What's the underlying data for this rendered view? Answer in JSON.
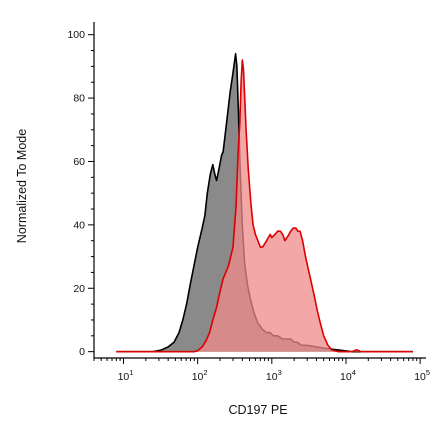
{
  "chart_data": {
    "type": "area",
    "xlabel": "CD197 PE",
    "ylabel": "Normalized To Mode",
    "x_scale": "log",
    "xlim": [
      4,
      120000
    ],
    "ylim": [
      -2,
      104
    ],
    "x_ticks": [
      {
        "value": 10,
        "base": "10",
        "exp": "1"
      },
      {
        "value": 100,
        "base": "10",
        "exp": "2"
      },
      {
        "value": 1000,
        "base": "10",
        "exp": "3"
      },
      {
        "value": 10000,
        "base": "10",
        "exp": "4"
      },
      {
        "value": 100000,
        "base": "10",
        "exp": "5"
      }
    ],
    "y_ticks": [
      0,
      20,
      40,
      60,
      80,
      100
    ],
    "series": [
      {
        "color": "#7f7f7f",
        "fill": "#8a8a8a",
        "stroke": "#000000",
        "points": [
          [
            8,
            0
          ],
          [
            16,
            0
          ],
          [
            25,
            0
          ],
          [
            32,
            0.5
          ],
          [
            40,
            1.5
          ],
          [
            48,
            3
          ],
          [
            56,
            6
          ],
          [
            63,
            10
          ],
          [
            71,
            15
          ],
          [
            79,
            21
          ],
          [
            89,
            27
          ],
          [
            100,
            33
          ],
          [
            115,
            39
          ],
          [
            125,
            43
          ],
          [
            135,
            50
          ],
          [
            148,
            56
          ],
          [
            160,
            59
          ],
          [
            170,
            56
          ],
          [
            180,
            54
          ],
          [
            195,
            58
          ],
          [
            210,
            62
          ],
          [
            220,
            63
          ],
          [
            245,
            72
          ],
          [
            275,
            82
          ],
          [
            300,
            88
          ],
          [
            325,
            94
          ],
          [
            338,
            90
          ],
          [
            355,
            75
          ],
          [
            375,
            57
          ],
          [
            400,
            40
          ],
          [
            430,
            28
          ],
          [
            470,
            21
          ],
          [
            520,
            16
          ],
          [
            580,
            12
          ],
          [
            650,
            9
          ],
          [
            750,
            7
          ],
          [
            850,
            6
          ],
          [
            950,
            6
          ],
          [
            1050,
            5
          ],
          [
            1200,
            5
          ],
          [
            1400,
            4
          ],
          [
            1600,
            4
          ],
          [
            1800,
            4
          ],
          [
            2000,
            3
          ],
          [
            2200,
            3
          ],
          [
            2500,
            2
          ],
          [
            3000,
            2
          ],
          [
            4000,
            1.5
          ],
          [
            5500,
            1
          ],
          [
            8000,
            0.5
          ],
          [
            12000,
            0
          ],
          [
            30000,
            0
          ],
          [
            80000,
            0
          ]
        ]
      },
      {
        "color": "#ff0000",
        "fill": "#f08a8a",
        "stroke": "#dd0000",
        "points": [
          [
            8,
            0
          ],
          [
            60,
            0
          ],
          [
            90,
            0
          ],
          [
            100,
            0.3
          ],
          [
            115,
            1.5
          ],
          [
            130,
            3.5
          ],
          [
            145,
            6
          ],
          [
            160,
            10
          ],
          [
            180,
            14
          ],
          [
            200,
            19
          ],
          [
            220,
            23
          ],
          [
            260,
            27
          ],
          [
            300,
            33
          ],
          [
            330,
            46
          ],
          [
            350,
            62
          ],
          [
            370,
            72
          ],
          [
            385,
            85
          ],
          [
            400,
            92
          ],
          [
            415,
            89
          ],
          [
            430,
            81
          ],
          [
            450,
            70
          ],
          [
            480,
            58
          ],
          [
            520,
            47
          ],
          [
            560,
            40
          ],
          [
            600,
            37
          ],
          [
            650,
            35
          ],
          [
            700,
            33
          ],
          [
            750,
            33
          ],
          [
            800,
            34
          ],
          [
            850,
            35
          ],
          [
            900,
            36
          ],
          [
            950,
            37
          ],
          [
            1000,
            36
          ],
          [
            1100,
            37
          ],
          [
            1200,
            38
          ],
          [
            1300,
            38
          ],
          [
            1400,
            37
          ],
          [
            1500,
            35
          ],
          [
            1600,
            36
          ],
          [
            1700,
            37
          ],
          [
            1800,
            38
          ],
          [
            1950,
            39
          ],
          [
            2100,
            39
          ],
          [
            2250,
            38
          ],
          [
            2400,
            38
          ],
          [
            2600,
            35
          ],
          [
            2850,
            30
          ],
          [
            3100,
            26
          ],
          [
            3400,
            22
          ],
          [
            3700,
            18
          ],
          [
            4100,
            13
          ],
          [
            4500,
            9
          ],
          [
            5000,
            5
          ],
          [
            5700,
            2
          ],
          [
            6500,
            0.5
          ],
          [
            8000,
            0
          ],
          [
            12000,
            0
          ],
          [
            14000,
            0.6
          ],
          [
            16000,
            0
          ],
          [
            30000,
            0
          ],
          [
            80000,
            0
          ]
        ]
      }
    ]
  }
}
